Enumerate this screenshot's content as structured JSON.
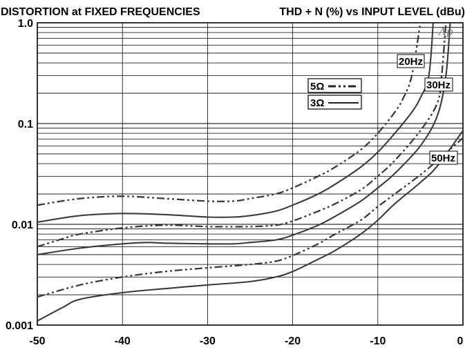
{
  "chart_data": {
    "type": "line",
    "title": "DISTORTION at FIXED FREQUENCIES",
    "subtitle": "THD + N (%) vs INPUT LEVEL (dBu)",
    "xlabel": "",
    "ylabel": "",
    "xlim": [
      -50,
      0
    ],
    "ylim": [
      0.001,
      1.0
    ],
    "yscale": "log",
    "grid": true,
    "x_ticks": [
      -50,
      -40,
      -30,
      -20,
      -10,
      0
    ],
    "x_tick_labels": [
      "-50",
      "-40",
      "-30",
      "-20",
      "-10",
      "0"
    ],
    "y_ticks": [
      0.001,
      0.01,
      0.1,
      1.0
    ],
    "y_tick_labels": [
      "0.001",
      "0.01",
      "0.1",
      "1.0"
    ],
    "legend": [
      {
        "label": "5Ω",
        "style": "dash-dot-dot"
      },
      {
        "label": "3Ω",
        "style": "solid"
      }
    ],
    "annotations": [
      "20Hz",
      "30Hz",
      "50Hz"
    ],
    "watermark": "Ap",
    "series": [
      {
        "freq": "20Hz",
        "load": "5Ω",
        "style": "dash-dot-dot",
        "x": [
          -50,
          -45,
          -40,
          -35,
          -30,
          -27,
          -25,
          -22,
          -20,
          -17,
          -15,
          -12,
          -10,
          -8,
          -7,
          -6,
          -5
        ],
        "y": [
          0.0155,
          0.018,
          0.019,
          0.018,
          0.017,
          0.017,
          0.018,
          0.02,
          0.023,
          0.03,
          0.037,
          0.055,
          0.08,
          0.13,
          0.18,
          0.3,
          1.0
        ]
      },
      {
        "freq": "20Hz",
        "load": "3Ω",
        "style": "solid",
        "x": [
          -50,
          -45,
          -40,
          -35,
          -30,
          -27,
          -25,
          -22,
          -20,
          -17,
          -15,
          -12,
          -10,
          -8,
          -6,
          -5,
          -4,
          -3.5
        ],
        "y": [
          0.0105,
          0.0122,
          0.0128,
          0.0125,
          0.0118,
          0.0118,
          0.0122,
          0.0135,
          0.0155,
          0.02,
          0.025,
          0.037,
          0.052,
          0.08,
          0.13,
          0.18,
          0.3,
          1.0
        ]
      },
      {
        "freq": "30Hz",
        "load": "5Ω",
        "style": "dash-dot-dot",
        "x": [
          -50,
          -47,
          -45,
          -40,
          -35,
          -30,
          -25,
          -22,
          -20,
          -17,
          -15,
          -12,
          -10,
          -8,
          -5,
          -3,
          -2.5,
          -2
        ],
        "y": [
          0.006,
          0.0072,
          0.008,
          0.0092,
          0.0098,
          0.0095,
          0.0095,
          0.0098,
          0.0108,
          0.0135,
          0.016,
          0.022,
          0.03,
          0.043,
          0.085,
          0.16,
          0.3,
          1.0
        ]
      },
      {
        "freq": "30Hz",
        "load": "3Ω",
        "style": "solid",
        "x": [
          -50,
          -45,
          -40,
          -37,
          -35,
          -30,
          -27,
          -25,
          -22,
          -20,
          -17,
          -15,
          -12,
          -10,
          -8,
          -5,
          -3,
          -2,
          -1.5
        ],
        "y": [
          0.005,
          0.0058,
          0.0064,
          0.0066,
          0.0065,
          0.0064,
          0.0064,
          0.0066,
          0.007,
          0.0078,
          0.0098,
          0.012,
          0.017,
          0.023,
          0.032,
          0.06,
          0.12,
          0.3,
          1.0
        ]
      },
      {
        "freq": "50Hz",
        "load": "5Ω",
        "style": "dash-dot-dot",
        "x": [
          -50,
          -45,
          -40,
          -35,
          -30,
          -25,
          -22,
          -20,
          -17,
          -15,
          -12,
          -10,
          -8,
          -5,
          -3,
          0
        ],
        "y": [
          0.0019,
          0.0025,
          0.003,
          0.0034,
          0.0037,
          0.004,
          0.0043,
          0.0049,
          0.0064,
          0.008,
          0.011,
          0.015,
          0.02,
          0.031,
          0.043,
          0.072
        ]
      },
      {
        "freq": "50Hz",
        "load": "3Ω",
        "style": "solid",
        "x": [
          -50,
          -47,
          -45,
          -40,
          -35,
          -30,
          -25,
          -22,
          -20,
          -17,
          -15,
          -12,
          -10,
          -8,
          -5,
          -3,
          0
        ],
        "y": [
          0.0011,
          0.0015,
          0.0018,
          0.0021,
          0.0023,
          0.0025,
          0.0027,
          0.003,
          0.0034,
          0.0045,
          0.0055,
          0.008,
          0.011,
          0.016,
          0.026,
          0.038,
          0.085
        ]
      }
    ]
  }
}
